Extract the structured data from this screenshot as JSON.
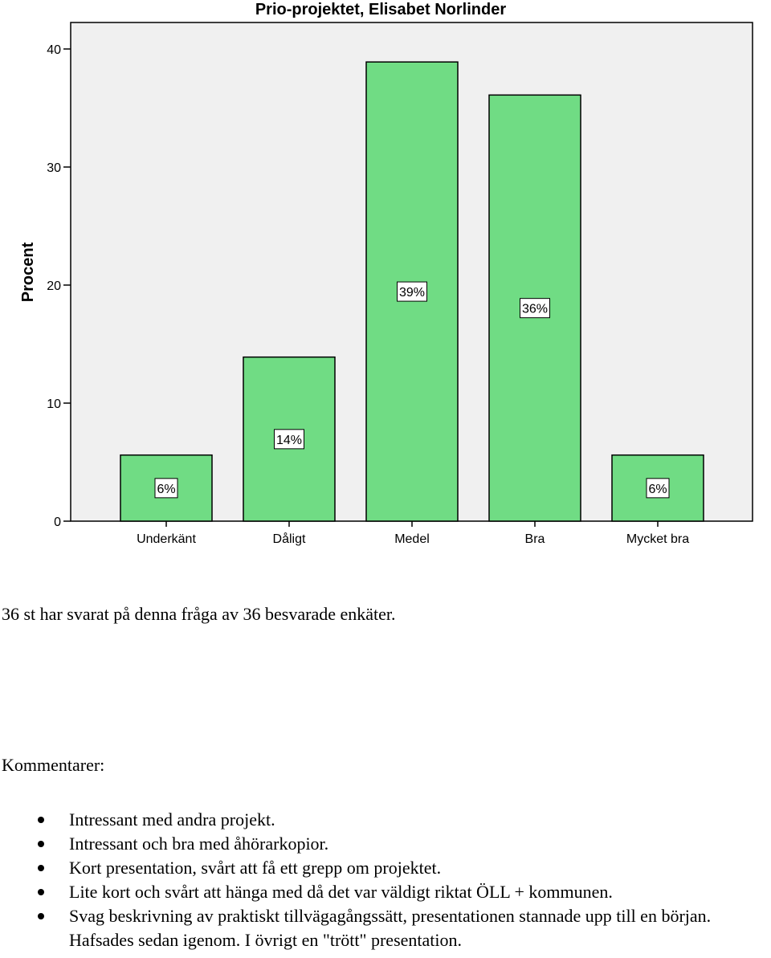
{
  "chart_data": {
    "type": "bar",
    "title": "Prio-projektet, Elisabet Norlinder",
    "xlabel": "",
    "ylabel": "Procent",
    "ylim": [
      0,
      40
    ],
    "yticks": [
      0,
      10,
      20,
      30,
      40
    ],
    "categories": [
      "Underkänt",
      "Dåligt",
      "Medel",
      "Bra",
      "Mycket bra"
    ],
    "values": [
      5.6,
      13.9,
      38.9,
      36.1,
      5.6
    ],
    "data_labels": [
      "6%",
      "14%",
      "39%",
      "36%",
      "6%"
    ],
    "grid": false,
    "colors": {
      "bar": "#70dc84",
      "plot_background": "#f0f0f0"
    }
  },
  "summary": "36 st har svarat på denna fråga av 36 besvarade enkäter.",
  "comments": {
    "heading": "Kommentarer:",
    "items": [
      "Intressant med andra projekt.",
      "Intressant och bra med åhörarkopior.",
      "Kort presentation, svårt att få ett grepp om projektet.",
      "Lite kort och svårt att hänga med då det var väldigt riktat ÖLL + kommunen.",
      "Svag beskrivning av praktiskt tillvägagångssätt, presentationen stannade upp till en början. Hafsades sedan igenom. I övrigt en \"trött\" presentation."
    ]
  }
}
